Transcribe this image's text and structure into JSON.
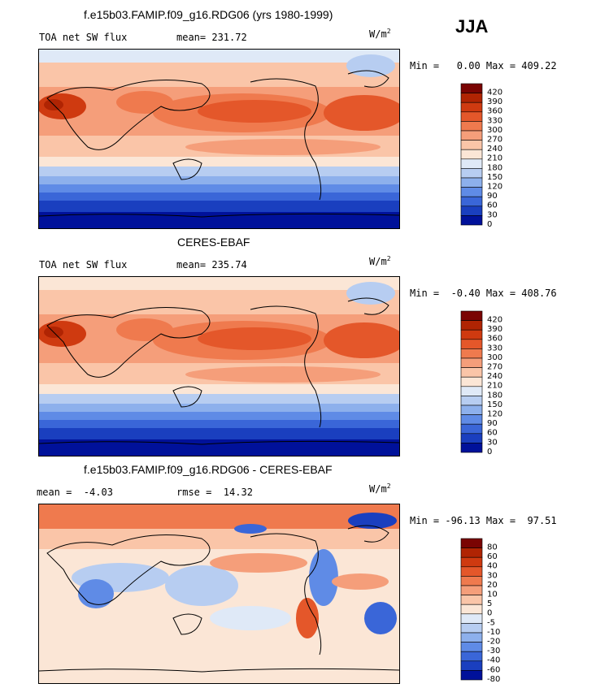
{
  "season": "JJA",
  "panels": [
    {
      "title": "f.e15b03.FAMIP.f09_g16.RDG06 (yrs 1980-1999)",
      "left_label": "TOA net SW flux",
      "mid_label": "mean= 231.72",
      "unit": "W/m",
      "unit_sup": "2",
      "minmax": "Min =   0.00 Max = 409.22",
      "cmap": "abs",
      "colorbar_levels": [
        "420",
        "390",
        "360",
        "330",
        "300",
        "270",
        "240",
        "210",
        "180",
        "150",
        "120",
        "90",
        "60",
        "30",
        "0"
      ]
    },
    {
      "title": "CERES-EBAF",
      "left_label": "TOA net SW flux",
      "mid_label": "mean= 235.74",
      "unit": "W/m",
      "unit_sup": "2",
      "minmax": "Min =  -0.40 Max = 408.76",
      "cmap": "abs",
      "colorbar_levels": [
        "420",
        "390",
        "360",
        "330",
        "300",
        "270",
        "240",
        "210",
        "180",
        "150",
        "120",
        "90",
        "60",
        "30",
        "0"
      ]
    },
    {
      "title": "f.e15b03.FAMIP.f09_g16.RDG06 - CERES-EBAF",
      "left_label": "mean =  -4.03",
      "mid_label": "rmse =  14.32",
      "unit": "W/m",
      "unit_sup": "2",
      "minmax": "Min = -96.13 Max =  97.51",
      "cmap": "diff",
      "colorbar_levels": [
        "80",
        "60",
        "40",
        "30",
        "20",
        "10",
        "5",
        "0",
        "-5",
        "-10",
        "-20",
        "-30",
        "-40",
        "-60",
        "-80"
      ]
    }
  ],
  "colors": {
    "abs": [
      "#7a0403",
      "#b02403",
      "#cf3a10",
      "#e4572a",
      "#ef7a4e",
      "#f59e7a",
      "#fac5a8",
      "#fbe6d6",
      "#dfe9f7",
      "#b7cdf1",
      "#8db0ec",
      "#5f8be6",
      "#3a66d8",
      "#1a3fbf",
      "#00119a"
    ],
    "diff": [
      "#7a0403",
      "#b02403",
      "#cf3a10",
      "#e4572a",
      "#ef7a4e",
      "#f59e7a",
      "#fac5a8",
      "#fbe6d6",
      "#dfe9f7",
      "#b7cdf1",
      "#8db0ec",
      "#5f8be6",
      "#3a66d8",
      "#1a3fbf",
      "#00119a"
    ]
  }
}
